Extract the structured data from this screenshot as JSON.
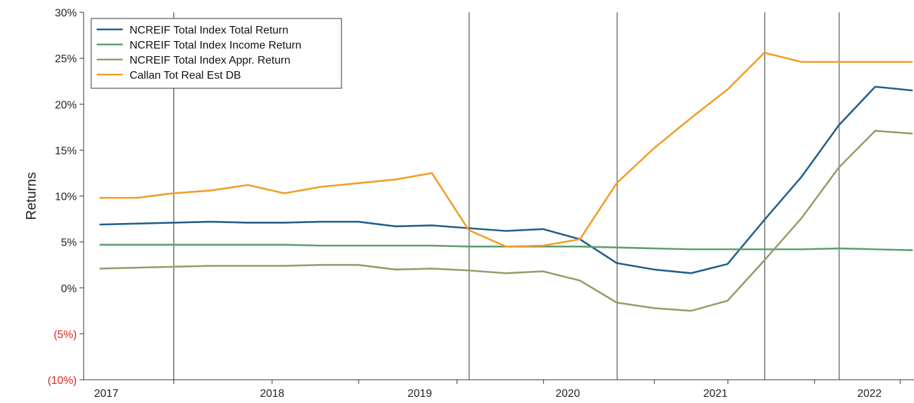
{
  "chart_data": {
    "type": "line",
    "title": "",
    "xlabel": "",
    "ylabel": "Returns",
    "x": [
      "2016-12-31",
      "2017-03-31",
      "2017-06-30",
      "2017-09-30",
      "2017-12-31",
      "2018-03-31",
      "2018-06-30",
      "2018-09-30",
      "2018-12-31",
      "2019-03-31",
      "2019-06-30",
      "2019-09-30",
      "2019-12-31",
      "2020-03-31",
      "2020-06-30",
      "2020-09-30",
      "2020-12-31",
      "2021-03-31",
      "2021-06-30",
      "2021-09-30",
      "2021-12-31",
      "2022-03-31",
      "2022-06-30"
    ],
    "year_labels": [
      "2017",
      "2018",
      "2019",
      "2020",
      "2021",
      "2022"
    ],
    "ylim": [
      -10,
      30
    ],
    "y_ticks": [
      {
        "value": 30,
        "label": "30%",
        "negative": false
      },
      {
        "value": 25,
        "label": "25%",
        "negative": false
      },
      {
        "value": 20,
        "label": "20%",
        "negative": false
      },
      {
        "value": 15,
        "label": "15%",
        "negative": false
      },
      {
        "value": 10,
        "label": "10%",
        "negative": false
      },
      {
        "value": 5,
        "label": "5%",
        "negative": false
      },
      {
        "value": 0,
        "label": "0%",
        "negative": false
      },
      {
        "value": -5,
        "label": "(5%)",
        "negative": true
      },
      {
        "value": -10,
        "label": "(10%)",
        "negative": true
      }
    ],
    "grid": "vertical lines at year boundaries",
    "legend_position": "top-left",
    "series": [
      {
        "name": "NCREIF Total Index Total Return",
        "color": "#1f5f8b",
        "values": [
          6.9,
          7.0,
          7.1,
          7.2,
          7.1,
          7.1,
          7.2,
          7.2,
          6.7,
          6.8,
          6.5,
          6.2,
          6.4,
          5.3,
          2.7,
          2.0,
          1.6,
          2.6,
          7.4,
          12.1,
          17.7,
          21.9,
          21.5
        ]
      },
      {
        "name": "NCREIF Total Index Income Return",
        "color": "#5f9e6e",
        "values": [
          4.7,
          4.7,
          4.7,
          4.7,
          4.7,
          4.7,
          4.6,
          4.6,
          4.6,
          4.6,
          4.5,
          4.5,
          4.5,
          4.5,
          4.4,
          4.3,
          4.2,
          4.2,
          4.2,
          4.2,
          4.3,
          4.2,
          4.1
        ]
      },
      {
        "name": "NCREIF Total Index Appr. Return",
        "color": "#9a9a6a",
        "values": [
          2.1,
          2.2,
          2.3,
          2.4,
          2.4,
          2.4,
          2.5,
          2.5,
          2.0,
          2.1,
          1.9,
          1.6,
          1.8,
          0.8,
          -1.6,
          -2.2,
          -2.5,
          -1.4,
          3.0,
          7.6,
          13.1,
          17.1,
          16.8
        ]
      },
      {
        "name": "Callan Tot Real Est DB",
        "color": "#f39c24",
        "values": [
          9.8,
          9.8,
          10.3,
          10.6,
          11.2,
          10.3,
          11.0,
          11.4,
          11.8,
          12.5,
          6.3,
          4.5,
          4.6,
          5.3,
          11.4,
          15.2,
          18.5,
          21.6,
          25.6,
          24.6,
          24.6,
          24.6,
          24.6
        ]
      }
    ]
  }
}
